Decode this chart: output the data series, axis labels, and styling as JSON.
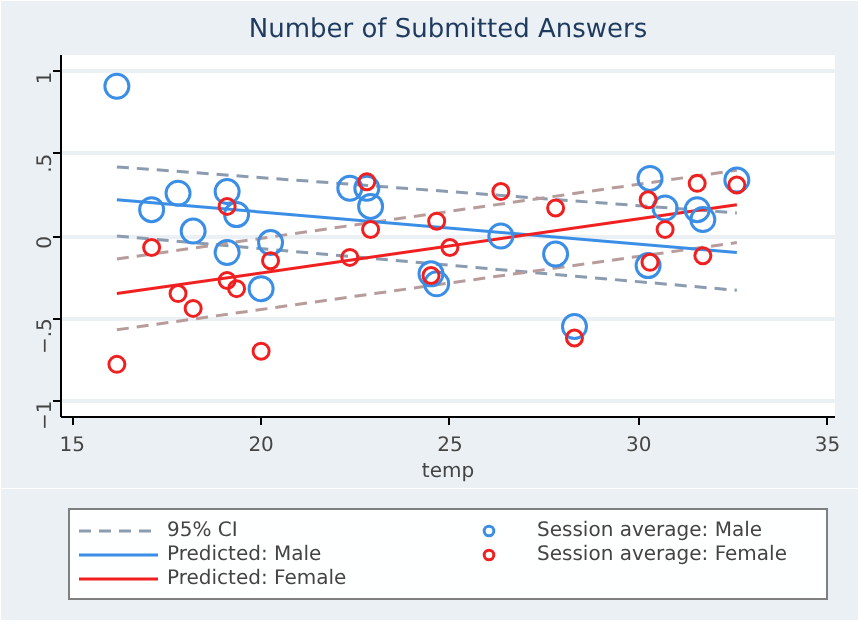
{
  "chart_data": {
    "type": "scatter",
    "title": "Number of Submitted Answers",
    "xlabel": "temp",
    "xlim": [
      14.7,
      35.2
    ],
    "ylim": [
      -1.1,
      1.1
    ],
    "xticks": [
      15,
      20,
      25,
      30,
      35
    ],
    "yticks": [
      {
        "value": -1,
        "label": "−1"
      },
      {
        "value": -0.5,
        "label": "−.5"
      },
      0,
      {
        "value": 0.5,
        "label": ".5"
      },
      1
    ],
    "grid": "y",
    "legend": "bottom",
    "series": [
      {
        "type": "line",
        "name": "95% CI",
        "color": "#8b9bb0",
        "line_style": "dashed",
        "x": [
          16.18,
          32.6
        ],
        "values": [
          0.42,
          0.14
        ]
      },
      {
        "type": "line",
        "color": "#8b9bb0",
        "line_style": "dashed",
        "x": [
          16.18,
          32.6
        ],
        "values": [
          0.0,
          -0.33
        ]
      },
      {
        "type": "line",
        "color": "#b89c9c",
        "line_style": "dashed",
        "x": [
          16.18,
          32.6
        ],
        "values": [
          -0.14,
          0.4
        ]
      },
      {
        "type": "line",
        "color": "#b89c9c",
        "line_style": "dashed",
        "x": [
          16.18,
          32.6
        ],
        "values": [
          -0.57,
          -0.04
        ]
      },
      {
        "type": "line",
        "name": "Predicted: Male",
        "color": "#3a8ee6",
        "line_style": "solid",
        "x": [
          16.18,
          32.6
        ],
        "values": [
          0.22,
          -0.1
        ]
      },
      {
        "type": "line",
        "name": "Predicted: Female",
        "color": "#f02020",
        "line_style": "solid",
        "x": [
          16.18,
          32.6
        ],
        "values": [
          -0.35,
          0.19
        ]
      },
      {
        "name": "Session average: Male",
        "color": "#3a8ee6",
        "marker": "circle",
        "x": [
          16.18,
          17.1,
          17.8,
          18.2,
          19.1,
          19.1,
          19.35,
          20.25,
          20.0,
          22.35,
          22.8,
          22.9,
          24.5,
          24.65,
          26.35,
          27.8,
          28.3,
          30.3,
          30.25,
          30.7,
          31.55,
          31.7,
          32.6
        ],
        "values": [
          0.91,
          0.16,
          0.26,
          0.03,
          0.27,
          -0.1,
          0.13,
          -0.04,
          -0.32,
          0.29,
          0.29,
          0.18,
          -0.23,
          -0.29,
          0.0,
          -0.11,
          -0.55,
          0.35,
          -0.18,
          0.17,
          0.16,
          0.1,
          0.34
        ]
      },
      {
        "name": "Session average: Female",
        "color": "#f02020",
        "marker": "circle",
        "x": [
          16.18,
          17.1,
          17.8,
          18.2,
          19.1,
          19.1,
          19.35,
          20.25,
          20.0,
          22.35,
          22.8,
          22.9,
          24.65,
          24.5,
          25.0,
          26.35,
          27.8,
          28.3,
          30.25,
          30.3,
          30.7,
          31.55,
          31.7,
          32.6
        ],
        "values": [
          -0.78,
          -0.07,
          -0.35,
          -0.44,
          0.18,
          -0.27,
          -0.32,
          -0.15,
          -0.7,
          -0.13,
          0.33,
          0.04,
          0.09,
          -0.24,
          -0.07,
          0.27,
          0.17,
          -0.62,
          0.22,
          -0.16,
          0.04,
          0.32,
          -0.12,
          0.31
        ]
      }
    ]
  }
}
